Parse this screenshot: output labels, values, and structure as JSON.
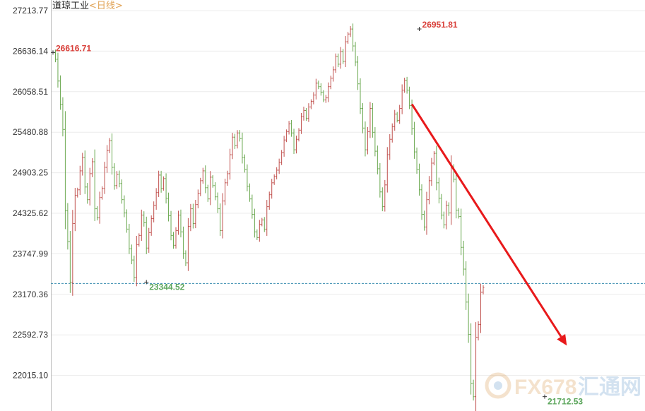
{
  "header": {
    "title": "道琼工业",
    "period": "<日线>"
  },
  "watermark": {
    "brand": "FX678",
    "cn": "汇通网"
  },
  "colors": {
    "up": "#c0504d",
    "down": "#6aa84f",
    "trend_arrow": "#e8191b",
    "ref_line": "#3d8fb0",
    "high_label": "#d9403a",
    "low_label": "#5aa55a"
  },
  "chart_data": {
    "type": "ohlc",
    "title": "道琼工业",
    "subtitle": "<日线>",
    "ylim": [
      21712.53,
      27213.77
    ],
    "ytick_labels": [
      "27213.77",
      "26636.14",
      "26058.51",
      "25480.88",
      "24903.25",
      "24325.62",
      "23747.99",
      "23170.36",
      "22592.73",
      "22015.10"
    ],
    "annotations": [
      {
        "label": "26616.71",
        "value": 26616.71,
        "kind": "high"
      },
      {
        "label": "23344.52",
        "value": 23344.52,
        "kind": "low"
      },
      {
        "label": "26951.81",
        "value": 26951.81,
        "kind": "high"
      },
      {
        "label": "21712.53",
        "value": 21712.53,
        "kind": "low"
      }
    ],
    "reference_line": 23325,
    "trend_arrow": {
      "from_index": 146,
      "from_value": 25880,
      "to_index": 209,
      "to_value": 22440
    },
    "closes": [
      26616,
      26520,
      26210,
      25880,
      25520,
      24360,
      23920,
      23344,
      24180,
      24580,
      24660,
      24930,
      25120,
      24700,
      24520,
      24890,
      25060,
      24390,
      24260,
      24550,
      24680,
      24980,
      25220,
      25360,
      24980,
      24720,
      24880,
      24750,
      24520,
      24330,
      24100,
      23820,
      23660,
      23410,
      23880,
      24010,
      24300,
      24190,
      23830,
      24050,
      24250,
      24440,
      24620,
      24870,
      24680,
      24820,
      24540,
      24290,
      24010,
      23870,
      24080,
      24300,
      24060,
      23750,
      23620,
      24140,
      24390,
      24180,
      24450,
      24610,
      24790,
      24930,
      24690,
      24530,
      24840,
      24720,
      24560,
      24390,
      24080,
      24500,
      24760,
      24890,
      25160,
      25410,
      25290,
      25470,
      25390,
      25120,
      24950,
      24710,
      24530,
      24310,
      24060,
      23980,
      24170,
      24230,
      24100,
      24420,
      24590,
      24760,
      24850,
      24940,
      25050,
      25190,
      25370,
      25490,
      25600,
      25470,
      25230,
      25380,
      25510,
      25700,
      25790,
      25680,
      25840,
      25920,
      26010,
      26180,
      26130,
      26050,
      25940,
      25970,
      26130,
      26250,
      26370,
      26560,
      26450,
      26630,
      26490,
      26770,
      26880,
      26951,
      26710,
      26480,
      26170,
      25820,
      25540,
      25230,
      25490,
      25820,
      25480,
      25210,
      24960,
      24630,
      24420,
      24730,
      25160,
      25380,
      25560,
      25740,
      25650,
      25820,
      26080,
      26220,
      26080,
      25860,
      25530,
      25200,
      24950,
      24660,
      24310,
      24130,
      24520,
      24790,
      25040,
      25180,
      24760,
      24540,
      24300,
      24160,
      24440,
      24330,
      24980,
      24810,
      24370,
      24280,
      23840,
      23530,
      23060,
      22600,
      21900,
      21712,
      22560,
      22740,
      23200,
      23270
    ]
  }
}
